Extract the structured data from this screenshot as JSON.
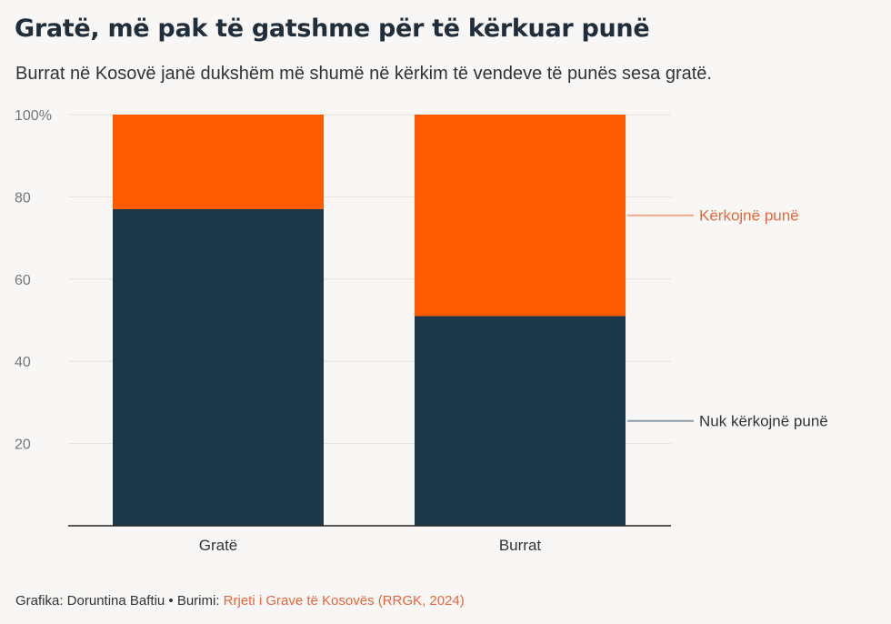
{
  "header": {
    "title": "Gratë, më pak të gatshme për të kërkuar punë",
    "subtitle": "Burrat në Kosovë janë dukshëm më shumë në kërkim të vendeve të punës sesa gratë."
  },
  "footer": {
    "credit": "Grafika: Doruntina Baftiu • Burimi: ",
    "source": "Rrjeti i Grave të Kosovës (RRGK, 2024)"
  },
  "colors": {
    "not_seeking": "#1c3747",
    "seeking": "#ff5a00",
    "seeking_label": "#e8663a",
    "not_seeking_label": "#333333",
    "seeking_line": "#f2a98a",
    "not_seeking_line": "#8a9aa6"
  },
  "chart_data": {
    "type": "bar",
    "stacked": true,
    "categories": [
      "Gratë",
      "Burrat"
    ],
    "series": [
      {
        "name": "Nuk kërkojnë punë",
        "values": [
          77,
          51
        ]
      },
      {
        "name": "Kërkojnë punë",
        "values": [
          23,
          49
        ]
      }
    ],
    "yticks": [
      "20",
      "40",
      "60",
      "80",
      "100%"
    ],
    "ytick_values": [
      20,
      40,
      60,
      80,
      100
    ],
    "ylim": [
      0,
      100
    ],
    "grid": true,
    "legend": "right, direct labels"
  }
}
